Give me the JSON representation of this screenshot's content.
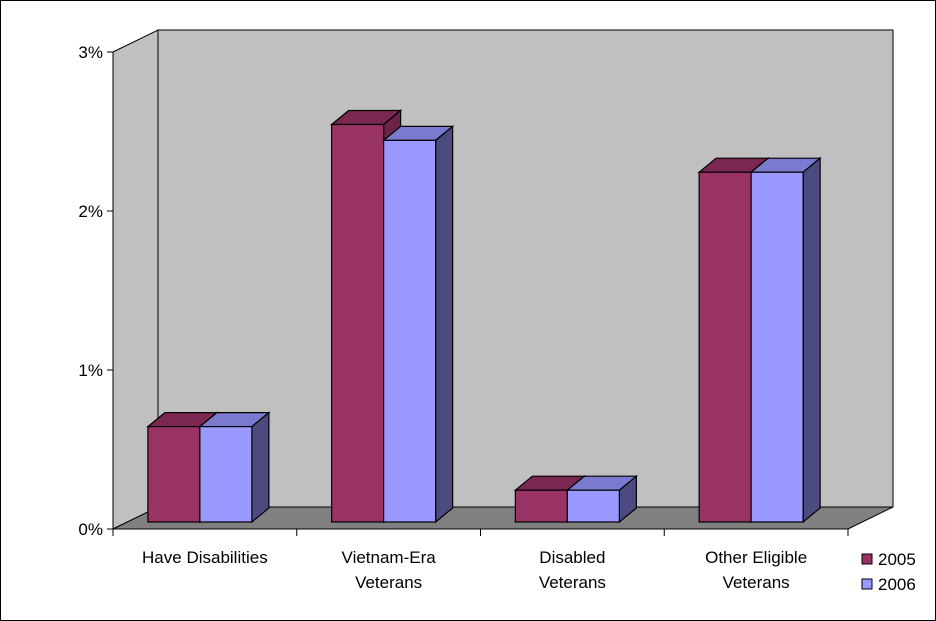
{
  "chart_data": {
    "type": "bar",
    "title": "",
    "xlabel": "",
    "ylabel": "",
    "categories": [
      [
        "Have Disabilities"
      ],
      [
        "Vietnam-Era",
        "Veterans"
      ],
      [
        "Disabled",
        "Veterans"
      ],
      [
        "Other Eligible",
        "Veterans"
      ]
    ],
    "series": [
      {
        "name": "2005",
        "values": [
          0.6,
          2.5,
          0.2,
          2.2
        ],
        "color": "#993366",
        "side": "#6b2347",
        "top": "#7a2851"
      },
      {
        "name": "2006",
        "values": [
          0.6,
          2.4,
          0.2,
          2.2
        ],
        "color": "#9999ff",
        "side": "#4b4b80",
        "top": "#7a7ad0"
      }
    ],
    "ylim": [
      0,
      3
    ],
    "yticks": [
      0,
      1,
      2,
      3
    ],
    "ytick_labels": [
      "0%",
      "1%",
      "2%",
      "3%"
    ],
    "grid": false,
    "legend_position": "bottom-right",
    "colors": {
      "wall": "#c0c0c0",
      "floor": "#808080",
      "frame": "#000000"
    }
  }
}
